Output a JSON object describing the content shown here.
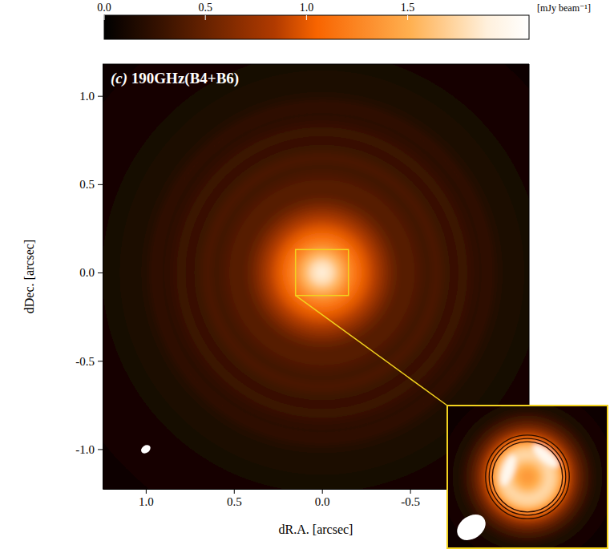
{
  "chart_data": {
    "type": "image",
    "title": "(c) 190GHz(B4+B6)",
    "x_label": "dR.A. [arcsec]",
    "y_label": "dDec. [arcsec]",
    "xlim": [
      1.245,
      -1.175
    ],
    "ylim": [
      -1.225,
      1.18
    ],
    "xticks": [
      {
        "value": 1,
        "label": "1.0"
      },
      {
        "value": 0.5,
        "label": "0.5"
      },
      {
        "value": 0,
        "label": "0.0"
      },
      {
        "value": -0.5,
        "label": "-0.5"
      }
    ],
    "yticks": [
      {
        "value": 1,
        "label": "1.0"
      },
      {
        "value": 0.5,
        "label": "0.5"
      },
      {
        "value": 0,
        "label": "0.0"
      },
      {
        "value": -0.5,
        "label": "-0.5"
      },
      {
        "value": -1,
        "label": "-1.0"
      }
    ],
    "profile": {
      "r": [
        0,
        0.05,
        0.1,
        0.15,
        0.2,
        0.25,
        0.3,
        0.35,
        0.4,
        0.45,
        0.5,
        0.55,
        0.6,
        0.65,
        0.7,
        0.75,
        0.8,
        0.85,
        0.9,
        0.95,
        1.0,
        1.05,
        1.1,
        1.2,
        1.3,
        1.45,
        1.7
      ],
      "intensity": [
        1.95,
        1.8,
        1.55,
        1.3,
        1.12,
        0.98,
        0.85,
        0.68,
        0.52,
        0.42,
        0.44,
        0.38,
        0.32,
        0.38,
        0.31,
        0.27,
        0.31,
        0.25,
        0.22,
        0.26,
        0.18,
        0.15,
        0.13,
        0.11,
        0.1,
        0.09,
        0.08
      ]
    },
    "beam": {
      "x": 1.0,
      "y": -1.0,
      "major": 0.058,
      "minor": 0.042,
      "pa": -55
    },
    "colorbar": {
      "label": "[mJy beam⁻¹]",
      "range": [
        0,
        2.1
      ],
      "ticks": [
        {
          "value": 0,
          "label": "0.0"
        },
        {
          "value": 0.5,
          "label": "0.5"
        },
        {
          "value": 1,
          "label": "1.0"
        },
        {
          "value": 1.5,
          "label": "1.5"
        }
      ]
    },
    "inset": {
      "xlim": [
        0.15,
        -0.15
      ],
      "ylim": [
        -0.13,
        0.13
      ],
      "profile": {
        "r": [
          0,
          0.01,
          0.02,
          0.03,
          0.04,
          0.05,
          0.06,
          0.07,
          0.08,
          0.09,
          0.1,
          0.11,
          0.12,
          0.13,
          0.15,
          0.18,
          0.22
        ],
        "intensity": [
          1.35,
          1.4,
          1.5,
          1.65,
          1.75,
          1.7,
          1.5,
          1.15,
          0.85,
          0.62,
          0.45,
          0.32,
          0.22,
          0.15,
          0.09,
          0.05,
          0.02
        ]
      },
      "contours": [
        0.9,
        1.1,
        1.3
      ],
      "clumps": [
        {
          "x": 0.036,
          "y": 0.012,
          "length": 0.06,
          "width": 0.022,
          "intensity": 2.0
        },
        {
          "x": -0.034,
          "y": 0.038,
          "length": 0.06,
          "width": 0.022,
          "intensity": 2.0
        }
      ]
    }
  }
}
